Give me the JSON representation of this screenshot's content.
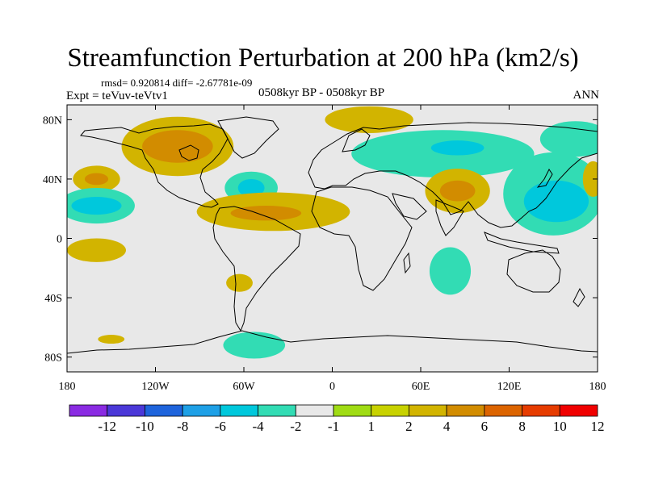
{
  "title": "Streamfunction Perturbation at 200 hPa (km2/s)",
  "stats": "rmsd= 0.920814 diff= -2.67781e-09",
  "experiment": "Expt = teVuv-teVtv1",
  "period": "0508kyr BP - 0508kyr BP",
  "season": "ANN",
  "map": {
    "lon_range": [
      -180,
      180
    ],
    "lat_range": [
      -90,
      90
    ],
    "projection": "cylindrical equidistant",
    "background_color": "#e8e8e8",
    "lon_ticks": [
      {
        "value": -180,
        "label": "180"
      },
      {
        "value": -120,
        "label": "120W"
      },
      {
        "value": -60,
        "label": "60W"
      },
      {
        "value": 0,
        "label": "0"
      },
      {
        "value": 60,
        "label": "60E"
      },
      {
        "value": 120,
        "label": "120E"
      },
      {
        "value": 180,
        "label": "180"
      }
    ],
    "lat_ticks": [
      {
        "value": 80,
        "label": "80N"
      },
      {
        "value": 40,
        "label": "40N"
      },
      {
        "value": 0,
        "label": "0"
      },
      {
        "value": -40,
        "label": "40S"
      },
      {
        "value": -80,
        "label": "80S"
      }
    ]
  },
  "colorbar": {
    "colors": [
      "#8a2be2",
      "#4b38d8",
      "#1e64dc",
      "#1ea0e6",
      "#00c8dc",
      "#32dcb4",
      "#e8e8e8",
      "#a0dc14",
      "#c8d200",
      "#d2b400",
      "#d28c00",
      "#dc6400",
      "#e63c00",
      "#f00000"
    ],
    "labels": [
      "-12",
      "-10",
      "-8",
      "-6",
      "-4",
      "-2",
      "-1",
      "1",
      "2",
      "4",
      "6",
      "8",
      "10",
      "12"
    ]
  },
  "field": [
    {
      "lon": -105,
      "lat": 62,
      "rx": 38,
      "ry": 20,
      "level": 2
    },
    {
      "lon": -105,
      "lat": 62,
      "rx": 24,
      "ry": 11,
      "level": 4
    },
    {
      "lon": -160,
      "lat": 40,
      "rx": 16,
      "ry": 9,
      "level": 2
    },
    {
      "lon": -160,
      "lat": 40,
      "rx": 8,
      "ry": 4,
      "level": 4
    },
    {
      "lon": -160,
      "lat": 22,
      "rx": 26,
      "ry": 12,
      "level": -2
    },
    {
      "lon": -160,
      "lat": 22,
      "rx": 17,
      "ry": 6,
      "level": -4
    },
    {
      "lon": -55,
      "lat": 34,
      "rx": 18,
      "ry": 11,
      "level": -2
    },
    {
      "lon": -55,
      "lat": 34,
      "rx": 9,
      "ry": 6,
      "level": -4
    },
    {
      "lon": -40,
      "lat": 18,
      "rx": 52,
      "ry": 13,
      "level": 2
    },
    {
      "lon": -45,
      "lat": 17,
      "rx": 24,
      "ry": 5,
      "level": 4
    },
    {
      "lon": -160,
      "lat": -8,
      "rx": 20,
      "ry": 8,
      "level": 2
    },
    {
      "lon": -63,
      "lat": -30,
      "rx": 9,
      "ry": 6,
      "level": 2
    },
    {
      "lon": -150,
      "lat": -68,
      "rx": 9,
      "ry": 3,
      "level": 2
    },
    {
      "lon": -53,
      "lat": -72,
      "rx": 21,
      "ry": 9,
      "level": -2
    },
    {
      "lon": 25,
      "lat": 80,
      "rx": 30,
      "ry": 9,
      "level": 2
    },
    {
      "lon": 75,
      "lat": 57,
      "rx": 62,
      "ry": 16,
      "level": -2
    },
    {
      "lon": 85,
      "lat": 61,
      "rx": 18,
      "ry": 5,
      "level": -4
    },
    {
      "lon": 85,
      "lat": 32,
      "rx": 22,
      "ry": 15,
      "level": 2
    },
    {
      "lon": 85,
      "lat": 32,
      "rx": 12,
      "ry": 7,
      "level": 4
    },
    {
      "lon": 150,
      "lat": 30,
      "rx": 34,
      "ry": 28,
      "level": -2
    },
    {
      "lon": 152,
      "lat": 25,
      "rx": 22,
      "ry": 14,
      "level": -4
    },
    {
      "lon": 165,
      "lat": 67,
      "rx": 24,
      "ry": 12,
      "level": -2
    },
    {
      "lon": 177,
      "lat": 40,
      "rx": 7,
      "ry": 12,
      "level": 2
    },
    {
      "lon": 80,
      "lat": -22,
      "rx": 14,
      "ry": 16,
      "level": -2
    }
  ]
}
